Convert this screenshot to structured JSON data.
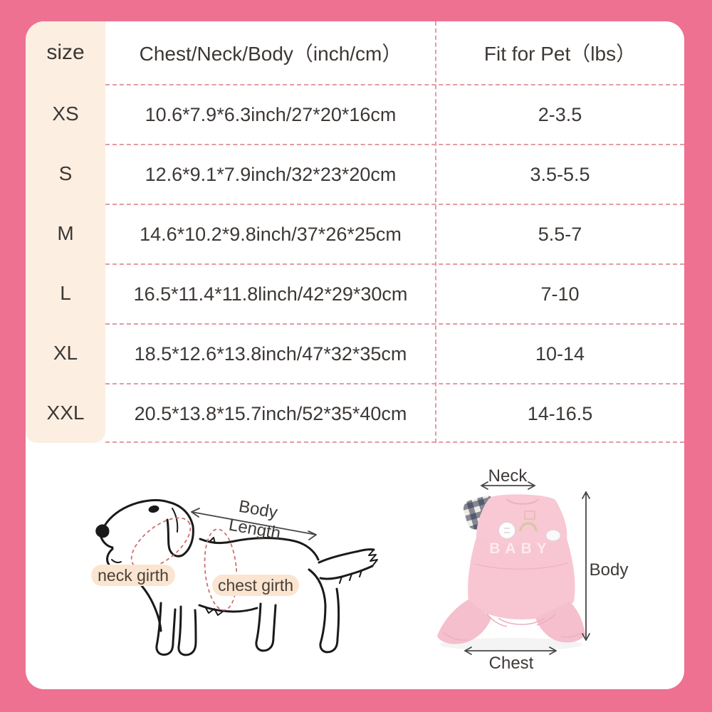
{
  "table": {
    "headers": {
      "size": "size",
      "measure": "Chest/Neck/Body（inch/cm）",
      "fit": "Fit for Pet（lbs）"
    },
    "rows": [
      {
        "size": "XS",
        "measure": "10.6*7.9*6.3inch/27*20*16cm",
        "fit": "2-3.5"
      },
      {
        "size": "S",
        "measure": "12.6*9.1*7.9inch/32*23*20cm",
        "fit": "3.5-5.5"
      },
      {
        "size": "M",
        "measure": "14.6*10.2*9.8inch/37*26*25cm",
        "fit": "5.5-7"
      },
      {
        "size": "L",
        "measure": "16.5*11.4*11.8linch/42*29*30cm",
        "fit": "7-10"
      },
      {
        "size": "XL",
        "measure": "18.5*12.6*13.8inch/47*32*35cm",
        "fit": "10-14"
      },
      {
        "size": "XXL",
        "measure": "20.5*13.8*15.7inch/52*35*40cm",
        "fit": "14-16.5"
      }
    ]
  },
  "diagram": {
    "dog": {
      "body_length_label": "Body Length",
      "neck_girth_label": "neck girth",
      "chest_girth_label": "chest girth"
    },
    "garment": {
      "neck_label": "Neck",
      "body_label": "Body",
      "chest_label": "Chest",
      "embroidery": "BABY"
    }
  },
  "colors": {
    "frame_pink": "#ee7191",
    "size_column_cream": "#fcefe2",
    "table_dash": "#e39ba3",
    "text_dark": "#3d3835",
    "label_pill": "#fbe5d1",
    "girth_dash_red": "#c96a6a",
    "garment_pink": "#f8c8d4",
    "ear_navy": "#2f3450"
  }
}
